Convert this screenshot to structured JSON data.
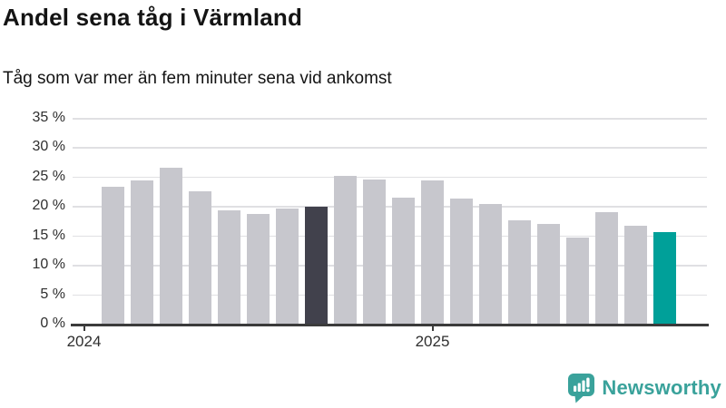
{
  "header": {
    "title": "Andel sena tåg i Värmland",
    "subtitle": "Tåg som var mer än fem minuter sena vid ankomst"
  },
  "chart_data": {
    "type": "bar",
    "title": "Andel sena tåg i Värmland",
    "subtitle": "Tåg som var mer än fem minuter sena vid ankomst",
    "unit": "%",
    "values": [
      23.3,
      24.4,
      26.5,
      22.5,
      19.2,
      18.7,
      19.6,
      19.9,
      25.1,
      24.5,
      21.4,
      24.3,
      21.3,
      20.3,
      17.6,
      17.0,
      14.7,
      19.0,
      16.6,
      15.5
    ],
    "ylim": [
      0,
      35
    ],
    "y_tick_labels": [
      "35 %",
      "30 %",
      "25 %",
      "20 %",
      "15 %",
      "10 %",
      "5 %",
      "0 %"
    ],
    "x_ticks": [
      {
        "label": "2024",
        "slot": 0
      },
      {
        "label": "2025",
        "slot": 12
      }
    ],
    "bars_start_slot": 1,
    "grid": true,
    "legend": "none",
    "colors": {
      "default_bar": "#c7c7cd",
      "highlight_dark": "#41414c",
      "highlight_accent": "#00a099",
      "highlight_indices": {
        "7": "#41414c",
        "19": "#00a099"
      },
      "axis": "#3b3b3b",
      "gridline": "#e0e0e3"
    }
  },
  "branding": {
    "logo_text": "Newsworthy",
    "logo_color": "#3aa29b"
  }
}
